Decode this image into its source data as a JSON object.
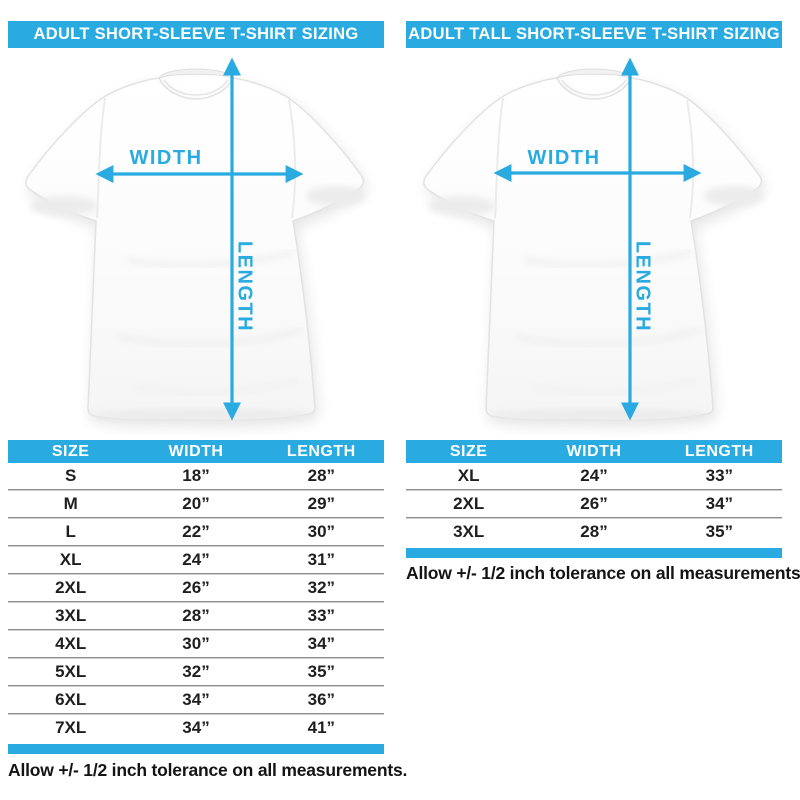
{
  "colors": {
    "accent_blue": "#29ABE2",
    "ink": "#1f1f1f",
    "header_text": "#ffffff"
  },
  "panels": [
    {
      "title": "ADULT SHORT-SLEEVE T-SHIRT SIZING",
      "diagram": {
        "width_label": "WIDTH",
        "length_label": "LENGTH"
      },
      "table": {
        "columns": [
          "SIZE",
          "WIDTH",
          "LENGTH"
        ],
        "rows": [
          [
            "S",
            "18”",
            "28”"
          ],
          [
            "M",
            "20”",
            "29”"
          ],
          [
            "L",
            "22”",
            "30”"
          ],
          [
            "XL",
            "24”",
            "31”"
          ],
          [
            "2XL",
            "26”",
            "32”"
          ],
          [
            "3XL",
            "28”",
            "33”"
          ],
          [
            "4XL",
            "30”",
            "34”"
          ],
          [
            "5XL",
            "32”",
            "35”"
          ],
          [
            "6XL",
            "34”",
            "36”"
          ],
          [
            "7XL",
            "34”",
            "41”"
          ]
        ]
      },
      "note": "Allow +/- 1/2 inch tolerance on all measurements."
    },
    {
      "title": "ADULT TALL SHORT-SLEEVE T-SHIRT SIZING",
      "diagram": {
        "width_label": "WIDTH",
        "length_label": "LENGTH"
      },
      "table": {
        "columns": [
          "SIZE",
          "WIDTH",
          "LENGTH"
        ],
        "rows": [
          [
            "XL",
            "24”",
            "33”"
          ],
          [
            "2XL",
            "26”",
            "34”"
          ],
          [
            "3XL",
            "28”",
            "35”"
          ]
        ]
      },
      "note": "Allow +/- 1/2 inch tolerance on all measurements."
    }
  ]
}
